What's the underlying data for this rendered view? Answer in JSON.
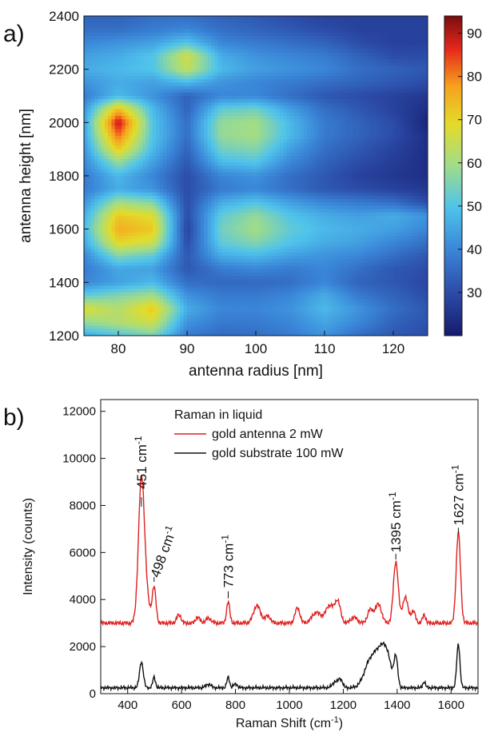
{
  "chart_data": [
    {
      "panel_label": "a)",
      "type": "heatmap",
      "xlabel": "antenna radius [nm]",
      "ylabel": "antenna height [nm]",
      "xlim": [
        75,
        125
      ],
      "ylim": [
        1200,
        2400
      ],
      "x_ticks": [
        "80",
        "90",
        "100",
        "110",
        "120"
      ],
      "y_ticks": [
        "1200",
        "1400",
        "1600",
        "1800",
        "2000",
        "2200",
        "2400"
      ],
      "colorbar": {
        "range": [
          20,
          94
        ],
        "ticks": [
          "30",
          "40",
          "50",
          "60",
          "70",
          "80",
          "90"
        ]
      },
      "x": [
        75,
        80,
        85,
        90,
        95,
        100,
        105,
        110,
        115,
        120,
        125
      ],
      "y": [
        1200,
        1250,
        1300,
        1350,
        1400,
        1450,
        1500,
        1550,
        1600,
        1650,
        1700,
        1750,
        1800,
        1850,
        1900,
        1950,
        2000,
        2050,
        2100,
        2150,
        2200,
        2250,
        2300,
        2350,
        2400
      ],
      "z_rows_by_y": [
        [
          45,
          50,
          55,
          38,
          35,
          36,
          38,
          42,
          36,
          32,
          30
        ],
        [
          58,
          62,
          66,
          42,
          38,
          38,
          40,
          45,
          40,
          34,
          31
        ],
        [
          68,
          62,
          72,
          46,
          40,
          40,
          42,
          48,
          42,
          36,
          32
        ],
        [
          52,
          56,
          60,
          42,
          38,
          38,
          40,
          46,
          38,
          34,
          30
        ],
        [
          40,
          44,
          48,
          36,
          35,
          35,
          36,
          40,
          34,
          32,
          29
        ],
        [
          38,
          45,
          44,
          32,
          38,
          40,
          38,
          40,
          36,
          32,
          30
        ],
        [
          40,
          56,
          52,
          32,
          46,
          48,
          44,
          42,
          40,
          36,
          32
        ],
        [
          45,
          70,
          66,
          30,
          52,
          56,
          50,
          46,
          44,
          40,
          36
        ],
        [
          48,
          76,
          72,
          28,
          54,
          60,
          52,
          48,
          46,
          44,
          40
        ],
        [
          46,
          72,
          68,
          30,
          52,
          58,
          50,
          46,
          44,
          46,
          42
        ],
        [
          42,
          60,
          56,
          30,
          46,
          50,
          44,
          40,
          38,
          36,
          30
        ],
        [
          38,
          46,
          42,
          30,
          38,
          40,
          36,
          32,
          30,
          28,
          26
        ],
        [
          38,
          48,
          40,
          30,
          40,
          42,
          36,
          32,
          28,
          26,
          24
        ],
        [
          40,
          58,
          44,
          32,
          48,
          50,
          40,
          34,
          30,
          27,
          24
        ],
        [
          42,
          72,
          48,
          34,
          54,
          56,
          44,
          36,
          32,
          28,
          24
        ],
        [
          44,
          82,
          50,
          36,
          58,
          60,
          48,
          38,
          34,
          30,
          24
        ],
        [
          44,
          90,
          50,
          36,
          58,
          60,
          48,
          38,
          34,
          30,
          22
        ],
        [
          42,
          74,
          48,
          34,
          52,
          54,
          44,
          36,
          32,
          28,
          24
        ],
        [
          38,
          48,
          42,
          34,
          40,
          40,
          36,
          32,
          30,
          28,
          26
        ],
        [
          42,
          46,
          44,
          48,
          42,
          40,
          38,
          36,
          34,
          32,
          30
        ],
        [
          46,
          48,
          50,
          64,
          48,
          44,
          42,
          40,
          36,
          34,
          32
        ],
        [
          44,
          46,
          50,
          66,
          46,
          42,
          40,
          38,
          34,
          30,
          30
        ],
        [
          40,
          42,
          44,
          50,
          40,
          38,
          36,
          34,
          30,
          28,
          28
        ],
        [
          36,
          36,
          38,
          40,
          36,
          34,
          32,
          30,
          28,
          28,
          28
        ],
        [
          34,
          34,
          36,
          36,
          34,
          32,
          30,
          28,
          28,
          28,
          28
        ]
      ]
    },
    {
      "panel_label": "b)",
      "type": "line",
      "xlabel": "Raman Shift (cm",
      "xlabel_sup": "-1",
      "xlabel_end": ")",
      "ylabel": "Intensity (counts)",
      "xlim": [
        300,
        1700
      ],
      "ylim": [
        0,
        12500
      ],
      "x_ticks": [
        "400",
        "600",
        "800",
        "1000",
        "1200",
        "1400",
        "1600"
      ],
      "y_ticks": [
        "0",
        "2000",
        "4000",
        "6000",
        "8000",
        "10000",
        "12000"
      ],
      "legend_title": "Raman in liquid",
      "series": [
        {
          "name": "gold antenna 2 mW",
          "color": "#e02020",
          "baseline": 3000,
          "peaks": [
            [
              451,
              6000,
              11
            ],
            [
              498,
              1500,
              7
            ],
            [
              470,
              900,
              12
            ],
            [
              590,
              350,
              8
            ],
            [
              660,
              250,
              8
            ],
            [
              700,
              200,
              10
            ],
            [
              773,
              900,
              6
            ],
            [
              880,
              750,
              13
            ],
            [
              920,
              300,
              10
            ],
            [
              1030,
              650,
              9
            ],
            [
              1100,
              450,
              16
            ],
            [
              1150,
              750,
              16
            ],
            [
              1180,
              850,
              10
            ],
            [
              1240,
              250,
              12
            ],
            [
              1300,
              550,
              10
            ],
            [
              1330,
              800,
              12
            ],
            [
              1395,
              2600,
              9
            ],
            [
              1430,
              1100,
              10
            ],
            [
              1460,
              500,
              8
            ],
            [
              1500,
              350,
              6
            ],
            [
              1627,
              3850,
              8
            ]
          ]
        },
        {
          "name": "gold substrate 100 mW",
          "color": "#111111",
          "baseline": 250,
          "peaks": [
            [
              451,
              1100,
              7
            ],
            [
              498,
              450,
              5
            ],
            [
              700,
              150,
              10
            ],
            [
              773,
              450,
              5
            ],
            [
              800,
              150,
              8
            ],
            [
              1170,
              250,
              10
            ],
            [
              1190,
              350,
              8
            ],
            [
              1300,
              1100,
              22
            ],
            [
              1340,
              1400,
              20
            ],
            [
              1365,
              900,
              15
            ],
            [
              1395,
              1250,
              7
            ],
            [
              1500,
              250,
              5
            ],
            [
              1627,
              1850,
              6
            ]
          ]
        }
      ],
      "annotations": [
        {
          "value": 451,
          "text": "451 cm",
          "sup": "-1"
        },
        {
          "value": 498,
          "text": "498 cm",
          "sup": "-1"
        },
        {
          "value": 773,
          "text": "773 cm",
          "sup": "-1"
        },
        {
          "value": 1395,
          "text": "1395 cm",
          "sup": "-1"
        },
        {
          "value": 1627,
          "text": "1627 cm",
          "sup": "-1"
        }
      ]
    }
  ]
}
